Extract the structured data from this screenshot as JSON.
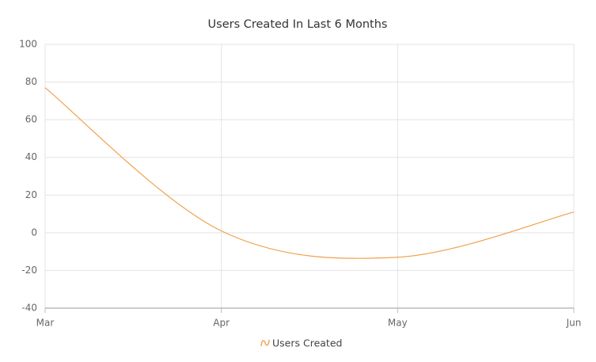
{
  "chart_data": {
    "type": "line",
    "title": "Users Created In Last 6 Months",
    "categories": [
      "Mar",
      "Apr",
      "May",
      "Jun"
    ],
    "series": [
      {
        "name": "Users Created",
        "color": "#f2a04c",
        "values": [
          77,
          1,
          -13,
          11
        ]
      }
    ],
    "ylim": [
      -40,
      100
    ],
    "yticks": [
      -40,
      -20,
      0,
      20,
      40,
      60,
      80,
      100
    ],
    "grid": true,
    "smooth": true,
    "legend": "bottom"
  }
}
